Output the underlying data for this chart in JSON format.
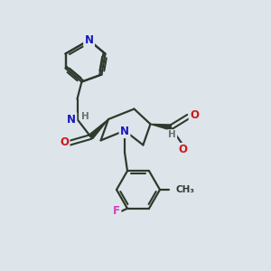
{
  "bg_color": "#dde5ea",
  "bond_color": "#2d3a2d",
  "atom_colors": {
    "N": "#1818bb",
    "O": "#cc1818",
    "F": "#cc44bb",
    "H": "#707070",
    "C": "#2d3a2d"
  },
  "figsize": [
    3.0,
    3.0
  ],
  "dpi": 100
}
